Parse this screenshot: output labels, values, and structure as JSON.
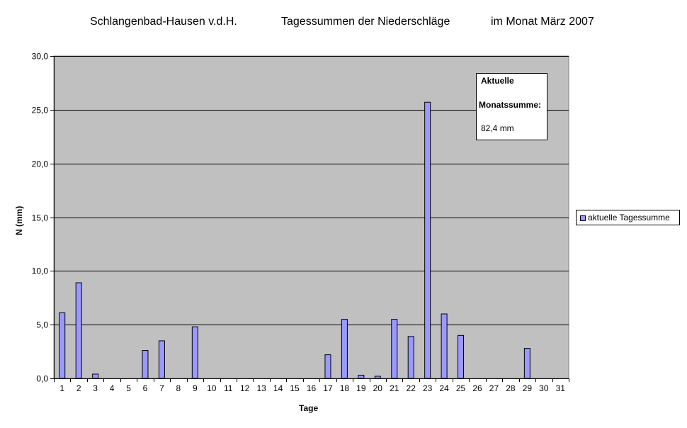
{
  "title": {
    "location": "Schlangenbad-Hausen v.d.H.",
    "subject": "Tagessummen der Niederschläge",
    "period": "im Monat März 2007"
  },
  "info_box": {
    "line1": "Aktuelle",
    "line2": "Monatssumme:",
    "line3": "82,4  mm"
  },
  "colors": {
    "plot_background": "#c0c0c0",
    "bar_fill": "#9999ff",
    "bar_stroke": "#000000",
    "gridline": "#000000"
  },
  "chart_data": {
    "type": "bar",
    "xlabel": "Tage",
    "ylabel": "N (mm)",
    "ylim": [
      0,
      30
    ],
    "y_ticks": [
      "0,0",
      "5,0",
      "10,0",
      "15,0",
      "20,0",
      "25,0",
      "30,0"
    ],
    "grid": true,
    "legend_position": "right",
    "categories": [
      "1",
      "2",
      "3",
      "4",
      "5",
      "6",
      "7",
      "8",
      "9",
      "10",
      "11",
      "12",
      "13",
      "14",
      "15",
      "16",
      "17",
      "18",
      "19",
      "20",
      "21",
      "22",
      "23",
      "24",
      "25",
      "26",
      "27",
      "28",
      "29",
      "30",
      "31"
    ],
    "series": [
      {
        "name": "aktuelle Tagessumme",
        "values": [
          6.1,
          8.9,
          0.4,
          0,
          0,
          2.6,
          3.5,
          0,
          4.8,
          0,
          0,
          0,
          0,
          0,
          0,
          0,
          2.2,
          5.5,
          0.3,
          0.2,
          5.5,
          3.9,
          25.7,
          6.0,
          4.0,
          0,
          0,
          0,
          2.8,
          0,
          0
        ]
      }
    ]
  }
}
